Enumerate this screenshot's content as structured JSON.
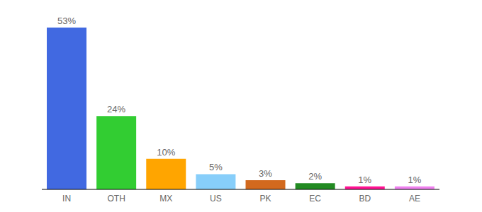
{
  "chart_data": {
    "type": "bar",
    "categories": [
      "IN",
      "OTH",
      "MX",
      "US",
      "PK",
      "EC",
      "BD",
      "AE"
    ],
    "values": [
      53,
      24,
      10,
      5,
      3,
      2,
      1,
      1
    ],
    "value_labels": [
      "53%",
      "24%",
      "10%",
      "5%",
      "3%",
      "2%",
      "1%",
      "1%"
    ],
    "colors": [
      "#4169e1",
      "#32cd32",
      "#ffa500",
      "#87cefa",
      "#d2691e",
      "#228b22",
      "#ff1493",
      "#ee82ee"
    ],
    "data_labels": true,
    "tick_labels": "x",
    "grid": false
  }
}
